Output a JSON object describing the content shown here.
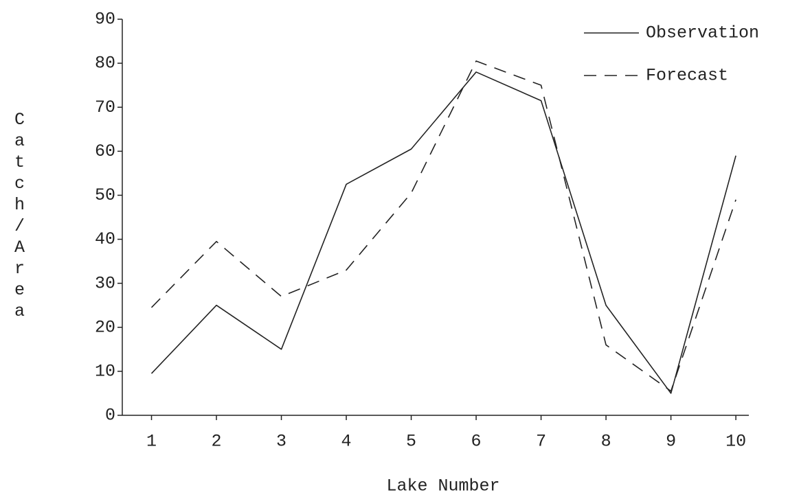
{
  "chart_data": {
    "type": "line",
    "x_label": "Lake Number",
    "y_label": "Catch/Area",
    "x": [
      1,
      2,
      3,
      4,
      5,
      6,
      7,
      8,
      9,
      10
    ],
    "series": [
      {
        "name": "Observation",
        "color": "#222222",
        "linestyle": "solid",
        "values": [
          9.5,
          25,
          15,
          52.5,
          60.5,
          78,
          71.5,
          25,
          5,
          59
        ]
      },
      {
        "name": "Forecast",
        "color": "#222222",
        "linestyle": "dashed",
        "values": [
          24.5,
          39.5,
          27,
          33,
          50.5,
          80.5,
          75,
          16,
          5.5,
          49
        ]
      }
    ],
    "xlim": [
      0.55,
      10.2
    ],
    "ylim": [
      0,
      90
    ],
    "xticks": [
      1,
      2,
      3,
      4,
      5,
      6,
      7,
      8,
      9,
      10
    ],
    "yticks": [
      0,
      10,
      20,
      30,
      40,
      50,
      60,
      70,
      80,
      90
    ],
    "grid": false,
    "legend": "upper-right"
  }
}
